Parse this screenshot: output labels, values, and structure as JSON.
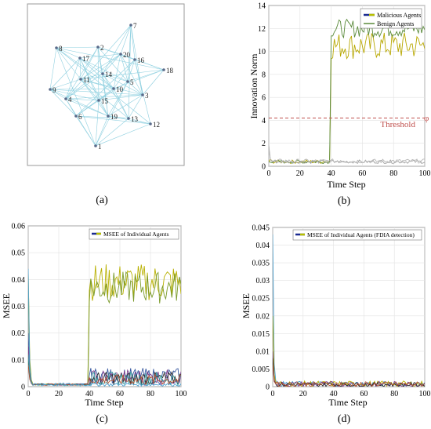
{
  "chart_data": [
    {
      "panel": "(a)",
      "type": "network",
      "nodes": [
        {
          "id": "1"
        },
        {
          "id": "2"
        },
        {
          "id": "3"
        },
        {
          "id": "4"
        },
        {
          "id": "5"
        },
        {
          "id": "6"
        },
        {
          "id": "7"
        },
        {
          "id": "8"
        },
        {
          "id": "9"
        },
        {
          "id": "10"
        },
        {
          "id": "11"
        },
        {
          "id": "12"
        },
        {
          "id": "13"
        },
        {
          "id": "14"
        },
        {
          "id": "15"
        },
        {
          "id": "16"
        },
        {
          "id": "17"
        },
        {
          "id": "18"
        },
        {
          "id": "19"
        },
        {
          "id": "20"
        }
      ],
      "edge_color": "#8fd0e0",
      "node_color": "#5a6a8a"
    },
    {
      "panel": "(b)",
      "type": "line",
      "xlabel": "Time Step",
      "ylabel": "Innovation Norm",
      "xlim": [
        0,
        100
      ],
      "ylim": [
        0,
        14
      ],
      "xticks": [
        "0",
        "20",
        "40",
        "60",
        "80",
        "100"
      ],
      "yticks": [
        "0",
        "2",
        "4",
        "6",
        "8",
        "10",
        "12",
        "14"
      ],
      "grid": true,
      "legend_position": "top-right",
      "legend": [
        "Malicious Agents",
        "Benign Agents"
      ],
      "threshold": {
        "value": 4.2,
        "label": "Threshold",
        "symbol": "φ",
        "color": "#c0504d"
      },
      "series": [
        {
          "name": "Malicious Agents",
          "color": "#b8a800",
          "start": 0.4,
          "jump_at": 40,
          "level": 10.5,
          "noise": 1.2
        },
        {
          "name": "Benign Agents",
          "color": "#5a8a3a",
          "start": 0.4,
          "jump_at": 40,
          "level": 12.0,
          "noise": 0.8
        },
        {
          "color": "#a0a0a0",
          "start": 1.8,
          "jump_at": null,
          "level": 0.4,
          "noise": 0.15
        },
        {
          "color": "#b5b5b5",
          "start": 1.6,
          "jump_at": null,
          "level": 0.45,
          "noise": 0.18
        }
      ]
    },
    {
      "panel": "(c)",
      "type": "line",
      "xlabel": "Time Step",
      "ylabel": "MSEE",
      "xlim": [
        0,
        100
      ],
      "ylim": [
        0,
        0.06
      ],
      "xticks": [
        "0",
        "20",
        "40",
        "60",
        "80",
        "100"
      ],
      "yticks": [
        "0",
        "0.01",
        "0.02",
        "0.03",
        "0.04",
        "0.05",
        "0.06"
      ],
      "grid": true,
      "legend_position": "top-right",
      "legend": [
        "MSEE of Individual Agents"
      ],
      "series": [
        {
          "color": "#b8b000",
          "start": 0.043,
          "jump_at": 40,
          "level": 0.039,
          "noise": 0.007
        },
        {
          "color": "#7a9a2a",
          "start": 0.035,
          "jump_at": 40,
          "level": 0.037,
          "noise": 0.006
        },
        {
          "color": "#3a5aa0",
          "start": 0.02,
          "jump_at": 40,
          "level": 0.004,
          "noise": 0.003
        },
        {
          "color": "#7a3a8a",
          "start": 0.015,
          "jump_at": 40,
          "level": 0.0035,
          "noise": 0.003
        },
        {
          "color": "#2a2a2a",
          "start": 0.01,
          "jump_at": 40,
          "level": 0.003,
          "noise": 0.0025
        },
        {
          "color": "#3aa0a0",
          "start": 0.012,
          "jump_at": 40,
          "level": 0.003,
          "noise": 0.0025
        },
        {
          "color": "#b05030",
          "start": 0.008,
          "jump_at": 40,
          "level": 0.0025,
          "noise": 0.002
        },
        {
          "color": "#4aa0d0",
          "start": 0.044,
          "jump_at": null,
          "level": 0.0008,
          "noise": 0.0006
        }
      ]
    },
    {
      "panel": "(d)",
      "type": "line",
      "xlabel": "Time Step",
      "ylabel": "MSEE",
      "xlim": [
        0,
        100
      ],
      "ylim": [
        0,
        0.045
      ],
      "xticks": [
        "0",
        "20",
        "40",
        "60",
        "80",
        "100"
      ],
      "yticks": [
        "0",
        "0.005",
        "0.01",
        "0.015",
        "0.02",
        "0.025",
        "0.03",
        "0.035",
        "0.04",
        "0.045"
      ],
      "grid": true,
      "legend_position": "top-right",
      "legend": [
        "MSEE of Individual Agents (FDIA detection)"
      ],
      "series": [
        {
          "color": "#4aa0d0",
          "start": 0.043,
          "jump_at": null,
          "level": 0.0008,
          "noise": 0.0007
        },
        {
          "color": "#b8b000",
          "start": 0.02,
          "jump_at": null,
          "level": 0.0008,
          "noise": 0.0008
        },
        {
          "color": "#7a3a8a",
          "start": 0.01,
          "jump_at": null,
          "level": 0.0007,
          "noise": 0.0008
        },
        {
          "color": "#2a2a2a",
          "start": 0.008,
          "jump_at": null,
          "level": 0.0006,
          "noise": 0.0006
        },
        {
          "color": "#b05030",
          "start": 0.006,
          "jump_at": null,
          "level": 0.0007,
          "noise": 0.0007
        }
      ]
    }
  ]
}
